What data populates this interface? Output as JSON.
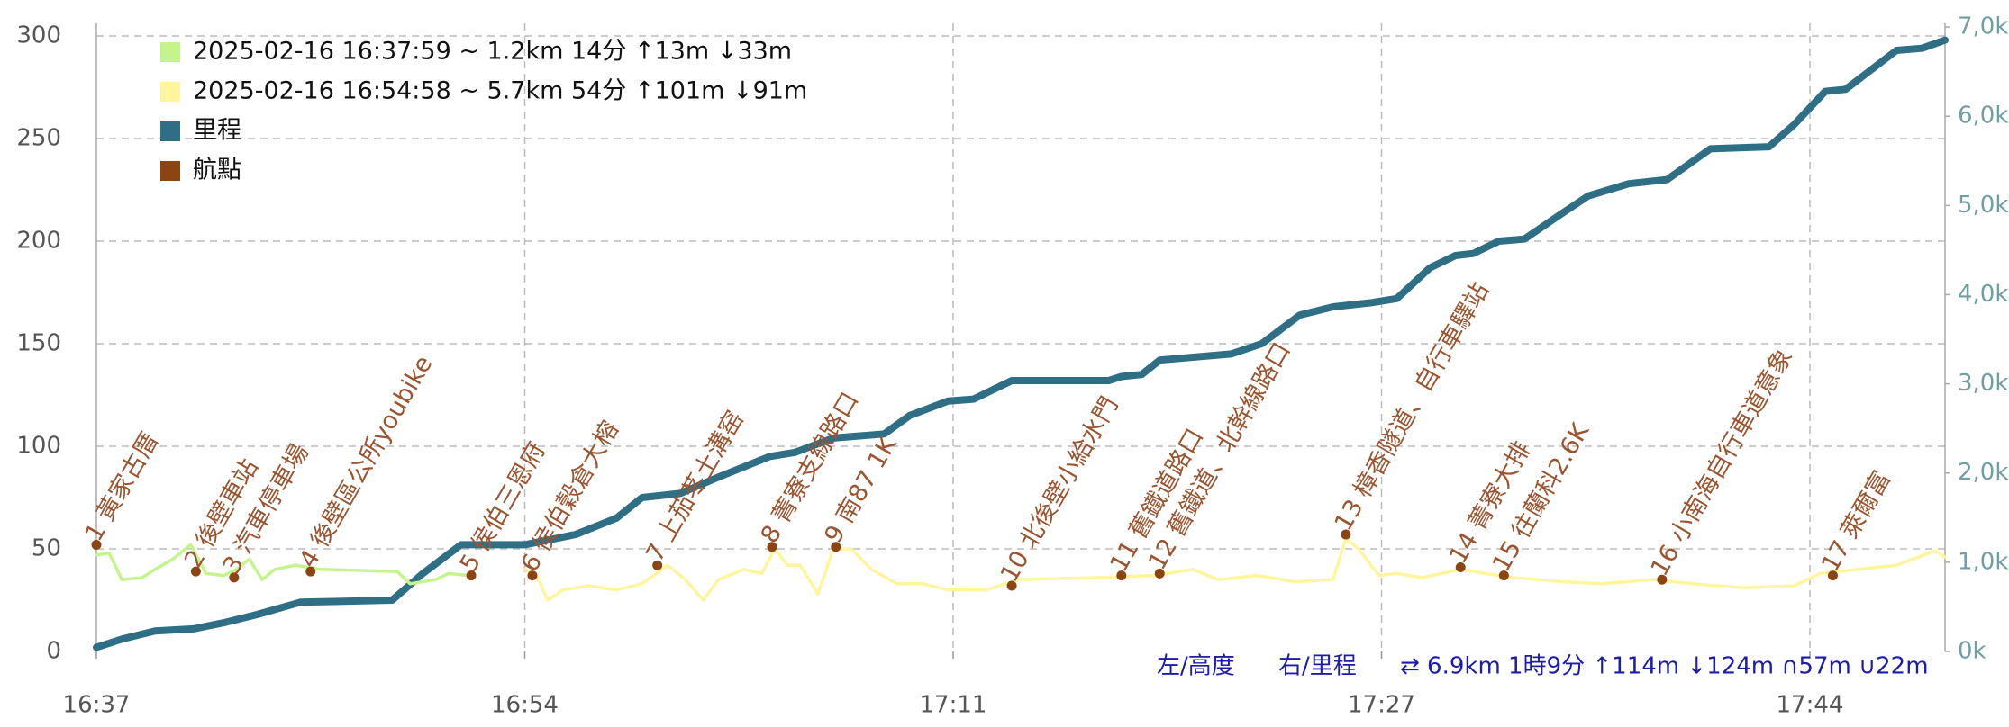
{
  "chart_data": {
    "type": "line",
    "xlim": [
      997,
      1069.5
    ],
    "xticks": [
      {
        "value": 997,
        "label": "16:37"
      },
      {
        "value": 1013.8,
        "label": "16:54"
      },
      {
        "value": 1030.6,
        "label": "17:11"
      },
      {
        "value": 1047.4,
        "label": "17:27"
      },
      {
        "value": 1064.2,
        "label": "17:44"
      }
    ],
    "ylim": [
      0,
      300
    ],
    "yticks": [
      0,
      50,
      100,
      150,
      200,
      250,
      300
    ],
    "y2lim": [
      0,
      6900
    ],
    "y2ticks": [
      {
        "value": 0,
        "label": "0k"
      },
      {
        "value": 1000,
        "label": "1,0k"
      },
      {
        "value": 2000,
        "label": "2,0k"
      },
      {
        "value": 3000,
        "label": "3,0k"
      },
      {
        "value": 4000,
        "label": "4,0k"
      },
      {
        "value": 5000,
        "label": "5,0k"
      },
      {
        "value": 6000,
        "label": "6,0k"
      },
      {
        "value": 7000,
        "label": "7,0k"
      }
    ],
    "grid": true,
    "legend": "top-left",
    "series": [
      {
        "name": "2025-02-16 16:37:59 ~ 1.2km 14分 ↑13m ↓33m",
        "color": "#c4f58c",
        "type": "line",
        "x": [
          997.0,
          997.5,
          998.0,
          998.8,
          999.3,
          1000.0,
          1000.7,
          1001.3,
          1002.0,
          1002.5,
          1003.0,
          1003.5,
          1004.0,
          1004.8,
          1005.8,
          1008.8,
          1009.3,
          1010.3,
          1010.8,
          1011.6
        ],
        "values": [
          47,
          48,
          35,
          36,
          40,
          45,
          52,
          38,
          37,
          40,
          45,
          35,
          40,
          42,
          40,
          39,
          33,
          35,
          38,
          37
        ]
      },
      {
        "name": "2025-02-16 16:54:58 ~ 5.7km 54分 ↑101m ↓91m",
        "color": "#fff59c",
        "type": "line",
        "x": [
          1013.8,
          1014.3,
          1014.7,
          1015.3,
          1016.3,
          1017.4,
          1018.4,
          1019.4,
          1020.1,
          1020.8,
          1021.4,
          1022.4,
          1023.1,
          1023.6,
          1024.1,
          1024.6,
          1025.3,
          1025.9,
          1026.6,
          1027.4,
          1028.4,
          1029.4,
          1030.4,
          1031.9,
          1033.2,
          1036.4,
          1038.5,
          1040.0,
          1041.0,
          1042.5,
          1044.0,
          1045.5,
          1046.0,
          1046.5,
          1047.3,
          1048.0,
          1049.0,
          1050.5,
          1052.5,
          1054.5,
          1056.0,
          1058.1,
          1059.6,
          1061.6,
          1063.6,
          1064.6,
          1066.1,
          1067.6,
          1069.1,
          1069.5
        ],
        "values": [
          40,
          36,
          25,
          30,
          32,
          30,
          33,
          42,
          35,
          25,
          35,
          40,
          38,
          50,
          42,
          42,
          28,
          50,
          50,
          40,
          33,
          33,
          30,
          30,
          35,
          36,
          37,
          40,
          35,
          37,
          34,
          35,
          55,
          50,
          37,
          38,
          36,
          40,
          36,
          34,
          33,
          35,
          33,
          31,
          32,
          38,
          40,
          42,
          49,
          46
        ]
      },
      {
        "name": "里程",
        "color": "#2f6f86",
        "type": "line",
        "axis": "y2",
        "x": [
          997.0,
          998.0,
          999.3,
          1000.8,
          1002.0,
          1003.3,
          1005.0,
          1008.6,
          1009.8,
          1011.3,
          1013.8,
          1015.8,
          1017.4,
          1018.4,
          1019.9,
          1021.4,
          1022.4,
          1023.4,
          1024.4,
          1025.9,
          1027.9,
          1028.9,
          1030.4,
          1031.4,
          1032.9,
          1036.7,
          1037.2,
          1038.0,
          1038.7,
          1041.5,
          1042.7,
          1044.2,
          1045.5,
          1047.0,
          1048.0,
          1049.3,
          1050.3,
          1051.0,
          1052.0,
          1053.0,
          1054.3,
          1055.5,
          1057.1,
          1058.6,
          1060.3,
          1062.6,
          1063.6,
          1064.8,
          1065.6,
          1067.6,
          1068.6,
          1069.5
        ],
        "values": [
          46,
          138,
          230,
          253,
          322,
          414,
          552,
          575,
          874,
          1196,
          1196,
          1311,
          1495,
          1725,
          1771,
          1955,
          2070,
          2185,
          2231,
          2392,
          2438,
          2645,
          2806,
          2829,
          3036,
          3036,
          3082,
          3105,
          3266,
          3335,
          3450,
          3772,
          3864,
          3910,
          3956,
          4301,
          4439,
          4462,
          4600,
          4623,
          4876,
          5106,
          5244,
          5290,
          5635,
          5658,
          5911,
          6279,
          6302,
          6739,
          6762,
          6854
        ]
      },
      {
        "name": "航點",
        "color": "#8b4513",
        "type": "scatter",
        "x": [
          997.0,
          1000.9,
          1002.4,
          1005.4,
          1011.7,
          1014.1,
          1019.0,
          1023.5,
          1026.0,
          1032.9,
          1037.2,
          1038.7,
          1046.0,
          1050.5,
          1052.2,
          1058.4,
          1065.1
        ],
        "values": [
          52,
          39,
          36,
          39,
          37,
          37,
          42,
          51,
          51,
          32,
          37,
          38,
          57,
          41,
          37,
          35,
          37
        ],
        "labels": [
          "1 黃家古厝",
          "2 後壁車站",
          "3 汽車停車場",
          "4 後壁區公所youbike",
          "5 侯伯三恩府",
          "6 侯伯穀倉大榕",
          "7 上茄苳土溝窑",
          "8 菁寮支線路口",
          "9 南87 1K",
          "10 北後壁小給水門",
          "11 舊鐵道路口",
          "12 舊鐵道、北幹線路口",
          "13 樟香隧道、自行車驛站",
          "14 菁寮大排",
          "15 往蘭科2.6K",
          "16 小南海自行車道意象",
          "17 萊爾富"
        ]
      }
    ],
    "annotations": [
      "左/高度",
      "右/里程",
      "⇄ 6.9km 1時9分 ↑114m ↓124m ∩57m ∪22m"
    ]
  }
}
